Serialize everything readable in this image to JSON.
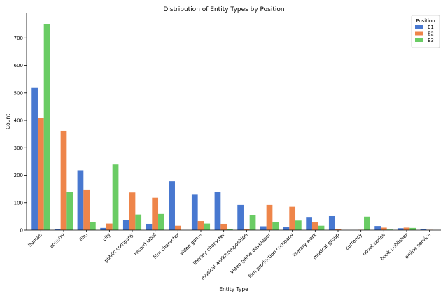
{
  "chart_data": {
    "type": "bar",
    "title": "Distribution of Entity Types by Position",
    "xlabel": "Entity Type",
    "ylabel": "Count",
    "ylim": [
      0,
      790
    ],
    "yticks": [
      0,
      100,
      200,
      300,
      400,
      500,
      600,
      700
    ],
    "grid": false,
    "legend": {
      "title": "Position",
      "placement": "top-right"
    },
    "categories": [
      "human",
      "country",
      "film",
      "city",
      "public company",
      "record label",
      "film character",
      "video game",
      "literary character",
      "musical work/composition",
      "video game developer",
      "film production company",
      "literary work",
      "musical group",
      "currency",
      "novel series",
      "book publisher",
      "online service"
    ],
    "series": [
      {
        "name": "E1",
        "color": "#4878d0",
        "values": [
          518,
          5,
          218,
          8,
          38,
          23,
          178,
          129,
          140,
          92,
          14,
          12,
          48,
          51,
          0,
          15,
          7,
          4
        ]
      },
      {
        "name": "E2",
        "color": "#ee854a",
        "values": [
          408,
          362,
          148,
          24,
          137,
          118,
          16,
          33,
          23,
          3,
          92,
          85,
          28,
          4,
          1,
          9,
          9,
          1
        ]
      },
      {
        "name": "E3",
        "color": "#6acc64",
        "values": [
          750,
          139,
          29,
          239,
          57,
          59,
          0,
          24,
          5,
          54,
          29,
          35,
          16,
          0,
          49,
          2,
          8,
          0
        ]
      }
    ]
  }
}
